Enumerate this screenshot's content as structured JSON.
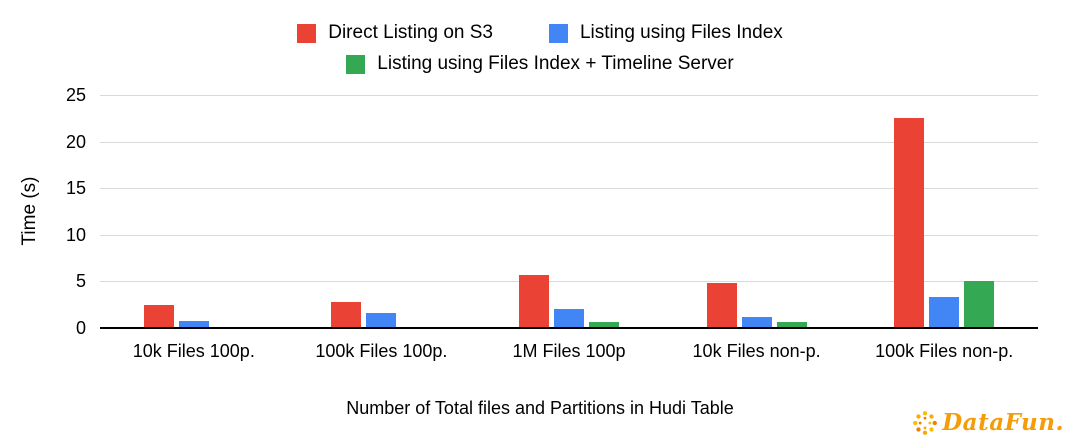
{
  "chart_data": {
    "type": "bar",
    "categories": [
      "10k Files 100p.",
      "100k Files 100p.",
      "1M Files 100p",
      "10k Files non-p.",
      "100k Files non-p."
    ],
    "series": [
      {
        "name": "Direct Listing on S3",
        "color": "#ea4335",
        "values": [
          2.5,
          2.8,
          5.7,
          4.8,
          22.5
        ]
      },
      {
        "name": "Listing using Files Index",
        "color": "#4285f4",
        "values": [
          0.8,
          1.6,
          2.0,
          1.2,
          3.3
        ]
      },
      {
        "name": "Listing using Files Index + Timeline Server",
        "color": "#34a853",
        "values": [
          0,
          0,
          0.6,
          0.6,
          5.0
        ]
      }
    ],
    "title": "",
    "xlabel": "Number of Total files and Partitions in Hudi Table",
    "ylabel": "Time (s)",
    "ylim": [
      0,
      25
    ],
    "yticks": [
      0,
      5,
      10,
      15,
      20,
      25
    ],
    "grid": true,
    "legend_position": "top",
    "legend_rows": [
      [
        0,
        1
      ],
      [
        2
      ]
    ]
  },
  "colors": {
    "red": "#ea4335",
    "blue": "#4285f4",
    "green": "#34a853",
    "gridline": "#d9d9d9",
    "axis": "#000000",
    "logo_orange": "#f59c0b"
  },
  "logo": {
    "text": "DataFun.",
    "icon": "sunburst-dots-icon"
  }
}
